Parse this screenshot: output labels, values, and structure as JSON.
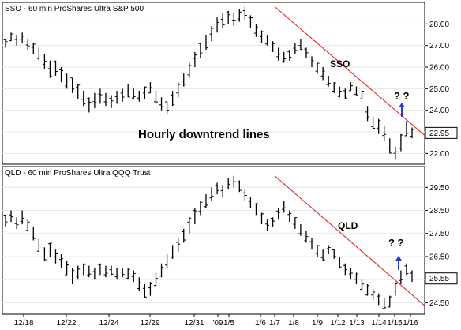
{
  "colors": {
    "bars": "#000000",
    "trendline": "#e03a3a",
    "arrow": "#1f3fd0",
    "grid": "#e8e8e8",
    "frame": "#000000"
  },
  "annotation": {
    "text": "Hourly downtrend lines"
  },
  "x_dates": [
    "12/18",
    "12/22",
    "12/24",
    "12/29",
    "12/31",
    "'09",
    "1/5",
    "1/6",
    "1/7",
    "1/8",
    "1/9",
    "1/12",
    "1/13",
    "1/14",
    "1/15",
    "1/16"
  ],
  "chart_data": [
    {
      "type": "ohlc",
      "title": "SSO - 60 min  ProShares Ultra S&P 500",
      "series_label": "SSO",
      "question": "? ?",
      "yticks": [
        22.0,
        23.0,
        24.0,
        25.0,
        26.0,
        27.0,
        28.0
      ],
      "ylim": [
        21.5,
        29.0
      ],
      "last_price": "22.95",
      "trendline": {
        "from": {
          "x": "1/7",
          "y": 28.8
        },
        "to": {
          "x": "1/16",
          "y": 23.4
        }
      },
      "bars": [
        [
          26.9,
          27.3
        ],
        [
          27.2,
          27.6
        ],
        [
          27.0,
          27.5
        ],
        [
          27.1,
          27.6
        ],
        [
          26.8,
          27.3
        ],
        [
          26.6,
          27.1
        ],
        [
          26.3,
          26.9
        ],
        [
          25.9,
          26.6
        ],
        [
          25.5,
          26.3
        ],
        [
          25.6,
          26.3
        ],
        [
          25.3,
          26.0
        ],
        [
          25.0,
          25.7
        ],
        [
          24.8,
          25.5
        ],
        [
          24.5,
          25.2
        ],
        [
          24.2,
          24.9
        ],
        [
          23.9,
          24.6
        ],
        [
          24.1,
          24.8
        ],
        [
          24.3,
          25.0
        ],
        [
          24.2,
          24.8
        ],
        [
          24.1,
          24.7
        ],
        [
          24.3,
          24.9
        ],
        [
          24.4,
          25.0
        ],
        [
          24.6,
          25.2
        ],
        [
          24.5,
          25.0
        ],
        [
          24.4,
          24.9
        ],
        [
          24.5,
          25.1
        ],
        [
          24.8,
          25.3
        ],
        [
          24.3,
          24.9
        ],
        [
          24.0,
          24.6
        ],
        [
          23.8,
          24.4
        ],
        [
          24.2,
          24.9
        ],
        [
          24.6,
          25.3
        ],
        [
          25.1,
          25.7
        ],
        [
          25.5,
          26.2
        ],
        [
          26.0,
          26.7
        ],
        [
          26.4,
          27.1
        ],
        [
          26.8,
          27.5
        ],
        [
          27.2,
          27.9
        ],
        [
          27.6,
          28.3
        ],
        [
          27.8,
          28.5
        ],
        [
          28.0,
          28.6
        ],
        [
          27.9,
          28.5
        ],
        [
          28.1,
          28.7
        ],
        [
          28.2,
          28.8
        ],
        [
          27.8,
          28.4
        ],
        [
          27.4,
          28.0
        ],
        [
          27.1,
          27.7
        ],
        [
          27.0,
          27.5
        ],
        [
          26.7,
          27.2
        ],
        [
          26.3,
          26.9
        ],
        [
          26.2,
          26.7
        ],
        [
          26.3,
          26.8
        ],
        [
          26.6,
          27.1
        ],
        [
          26.8,
          27.3
        ],
        [
          26.4,
          26.9
        ],
        [
          26.0,
          26.5
        ],
        [
          25.7,
          26.2
        ],
        [
          25.4,
          26.0
        ],
        [
          25.1,
          25.6
        ],
        [
          24.8,
          25.3
        ],
        [
          24.6,
          25.1
        ],
        [
          24.5,
          25.0
        ],
        [
          24.9,
          25.3
        ],
        [
          24.7,
          25.1
        ],
        [
          24.5,
          24.9
        ],
        [
          23.5,
          24.2
        ],
        [
          23.1,
          23.7
        ],
        [
          22.9,
          23.6
        ],
        [
          22.6,
          23.3
        ],
        [
          22.0,
          22.7
        ],
        [
          21.7,
          22.3
        ],
        [
          22.1,
          22.9
        ],
        [
          22.8,
          23.5
        ],
        [
          22.7,
          23.2
        ]
      ]
    },
    {
      "type": "ohlc",
      "title": "QLD - 60 min  ProShares Ultra QQQ Trust",
      "series_label": "QLD",
      "question": "? ?",
      "yticks": [
        24.5,
        25.5,
        26.5,
        27.5,
        28.5,
        29.5
      ],
      "ylim": [
        24.0,
        30.4
      ],
      "last_price": "25.55",
      "trendline": {
        "from": {
          "x": "1/7",
          "y": 30.0
        },
        "to": {
          "x": "1/16",
          "y": 24.9
        }
      },
      "bars": [
        [
          27.8,
          28.3
        ],
        [
          28.0,
          28.5
        ],
        [
          27.7,
          28.2
        ],
        [
          27.9,
          28.5
        ],
        [
          27.6,
          28.1
        ],
        [
          27.2,
          27.8
        ],
        [
          26.7,
          27.3
        ],
        [
          26.3,
          26.9
        ],
        [
          26.5,
          27.1
        ],
        [
          26.2,
          26.8
        ],
        [
          26.0,
          26.6
        ],
        [
          25.7,
          26.3
        ],
        [
          25.3,
          26.0
        ],
        [
          25.5,
          26.1
        ],
        [
          25.7,
          26.2
        ],
        [
          25.6,
          26.1
        ],
        [
          25.5,
          26.0
        ],
        [
          25.7,
          26.2
        ],
        [
          25.6,
          26.1
        ],
        [
          25.7,
          26.1
        ],
        [
          25.5,
          26.0
        ],
        [
          25.6,
          26.0
        ],
        [
          25.5,
          26.0
        ],
        [
          25.4,
          25.9
        ],
        [
          25.0,
          25.6
        ],
        [
          24.7,
          25.3
        ],
        [
          24.8,
          25.4
        ],
        [
          25.2,
          25.8
        ],
        [
          25.6,
          26.2
        ],
        [
          26.0,
          26.6
        ],
        [
          26.4,
          27.0
        ],
        [
          26.7,
          27.3
        ],
        [
          27.1,
          27.7
        ],
        [
          27.5,
          28.2
        ],
        [
          27.9,
          28.6
        ],
        [
          28.3,
          28.9
        ],
        [
          28.6,
          29.2
        ],
        [
          28.9,
          29.5
        ],
        [
          29.2,
          29.7
        ],
        [
          29.1,
          29.6
        ],
        [
          29.4,
          29.9
        ],
        [
          29.5,
          30.0
        ],
        [
          29.3,
          29.8
        ],
        [
          28.9,
          29.4
        ],
        [
          28.6,
          29.1
        ],
        [
          28.3,
          28.8
        ],
        [
          27.9,
          28.4
        ],
        [
          27.6,
          28.1
        ],
        [
          27.8,
          28.2
        ],
        [
          28.1,
          28.6
        ],
        [
          28.4,
          28.9
        ],
        [
          28.0,
          28.5
        ],
        [
          27.7,
          28.2
        ],
        [
          27.4,
          27.9
        ],
        [
          27.1,
          27.6
        ],
        [
          26.8,
          27.3
        ],
        [
          26.5,
          27.0
        ],
        [
          26.3,
          26.8
        ],
        [
          26.6,
          27.0
        ],
        [
          26.4,
          26.8
        ],
        [
          26.0,
          26.5
        ],
        [
          25.7,
          26.2
        ],
        [
          25.5,
          26.0
        ],
        [
          25.3,
          25.8
        ],
        [
          25.0,
          25.5
        ],
        [
          24.8,
          25.3
        ],
        [
          24.6,
          25.1
        ],
        [
          24.4,
          24.9
        ],
        [
          24.2,
          24.7
        ],
        [
          24.3,
          24.8
        ],
        [
          24.8,
          25.4
        ],
        [
          25.3,
          25.9
        ],
        [
          25.7,
          26.2
        ],
        [
          25.4,
          25.9
        ]
      ]
    }
  ]
}
